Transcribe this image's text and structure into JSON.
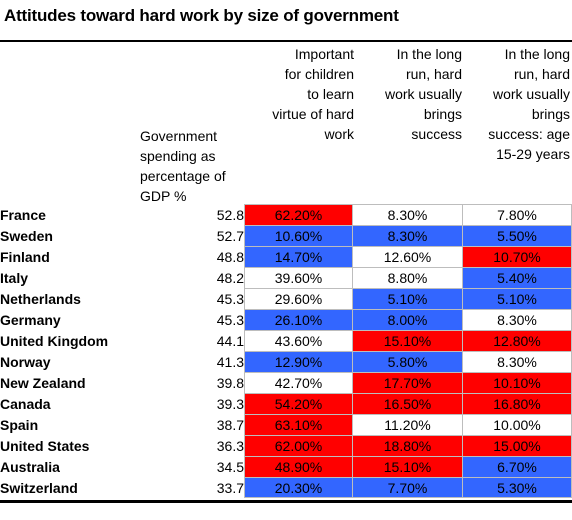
{
  "chart_data": {
    "type": "table",
    "title": "Attitudes toward hard work by size of government",
    "columns": [
      "Government\nspending as\npercentage of\nGDP %",
      "Important\nfor children\nto learn\nvirtue of hard\nwork",
      "In the long\nrun, hard\nwork usually\nbrings\nsuccess",
      "In the long\nrun, hard\nwork usually\nbrings\nsuccess: age\n15-29 years"
    ],
    "rows": [
      {
        "country": "France",
        "gov": "52.8",
        "c1": "62.20%",
        "c2": "8.30%",
        "c3": "7.80%"
      },
      {
        "country": "Sweden",
        "gov": "52.7",
        "c1": "10.60%",
        "c2": "8.30%",
        "c3": "5.50%"
      },
      {
        "country": "Finland",
        "gov": "48.8",
        "c1": "14.70%",
        "c2": "12.60%",
        "c3": "10.70%"
      },
      {
        "country": "Italy",
        "gov": "48.2",
        "c1": "39.60%",
        "c2": "8.80%",
        "c3": "5.40%"
      },
      {
        "country": "Netherlands",
        "gov": "45.3",
        "c1": "29.60%",
        "c2": "5.10%",
        "c3": "5.10%"
      },
      {
        "country": "Germany",
        "gov": "45.3",
        "c1": "26.10%",
        "c2": "8.00%",
        "c3": "8.30%"
      },
      {
        "country": "United Kingdom",
        "gov": "44.1",
        "c1": "43.60%",
        "c2": "15.10%",
        "c3": "12.80%"
      },
      {
        "country": "Norway",
        "gov": "41.3",
        "c1": "12.90%",
        "c2": "5.80%",
        "c3": "8.30%"
      },
      {
        "country": "New Zealand",
        "gov": "39.8",
        "c1": "42.70%",
        "c2": "17.70%",
        "c3": "10.10%"
      },
      {
        "country": "Canada",
        "gov": "39.3",
        "c1": "54.20%",
        "c2": "16.50%",
        "c3": "16.80%"
      },
      {
        "country": "Spain",
        "gov": "38.7",
        "c1": "63.10%",
        "c2": "11.20%",
        "c3": "10.00%"
      },
      {
        "country": "United States",
        "gov": "36.3",
        "c1": "62.00%",
        "c2": "18.80%",
        "c3": "15.00%"
      },
      {
        "country": "Australia",
        "gov": "34.5",
        "c1": "48.90%",
        "c2": "15.10%",
        "c3": "6.70%"
      },
      {
        "country": "Switzerland",
        "gov": "33.7",
        "c1": "20.30%",
        "c2": "7.70%",
        "c3": "5.30%"
      }
    ],
    "cell_colors": [
      [
        "#ff0000",
        "#ffffff",
        "#ffffff"
      ],
      [
        "#3366ff",
        "#3366ff",
        "#3366ff"
      ],
      [
        "#3366ff",
        "#ffffff",
        "#ff0000"
      ],
      [
        "#ffffff",
        "#ffffff",
        "#3366ff"
      ],
      [
        "#ffffff",
        "#3366ff",
        "#3366ff"
      ],
      [
        "#3366ff",
        "#3366ff",
        "#ffffff"
      ],
      [
        "#ffffff",
        "#ff0000",
        "#ff0000"
      ],
      [
        "#3366ff",
        "#3366ff",
        "#ffffff"
      ],
      [
        "#ffffff",
        "#ff0000",
        "#ff0000"
      ],
      [
        "#ff0000",
        "#ff0000",
        "#ff0000"
      ],
      [
        "#ff0000",
        "#ffffff",
        "#ffffff"
      ],
      [
        "#ff0000",
        "#ff0000",
        "#ff0000"
      ],
      [
        "#ff0000",
        "#ff0000",
        "#3366ff"
      ],
      [
        "#3366ff",
        "#3366ff",
        "#3366ff"
      ]
    ],
    "colors": {
      "high": "#ff0000",
      "low": "#3366ff",
      "neutral": "#ffffff"
    }
  }
}
